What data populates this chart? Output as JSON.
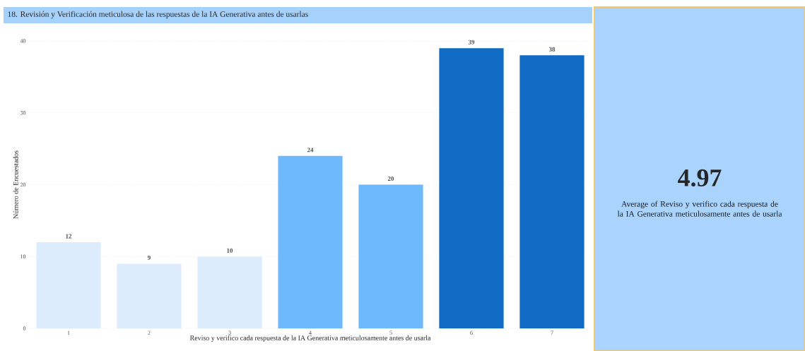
{
  "chart_data": [
    {
      "type": "bar",
      "title": "18. Revisión y Verificación meticulosa de las respuestas de la IA Generativa antes de usarlas",
      "xlabel": "Reviso y verifico cada respuesta de la IA Generativa meticulosamente antes de usarla",
      "ylabel": "Número de Encuestados",
      "categories": [
        "1",
        "2",
        "3",
        "4",
        "5",
        "6",
        "7"
      ],
      "values": [
        12,
        9,
        10,
        24,
        20,
        39,
        38
      ],
      "colors": [
        "#dcecfd",
        "#dcecfd",
        "#dcecfd",
        "#6db9fc",
        "#6db9fc",
        "#0f6bc4",
        "#0f6bc4"
      ],
      "ylim": [
        0,
        40
      ],
      "yticks": [
        0,
        10,
        20,
        30,
        40
      ],
      "grid": "y",
      "data_labels": true
    },
    {
      "type": "other",
      "title": "4.97",
      "subtitle": "Average of Reviso y verifico cada respuesta de la IA Generativa meticulosamente antes de usarla"
    }
  ]
}
